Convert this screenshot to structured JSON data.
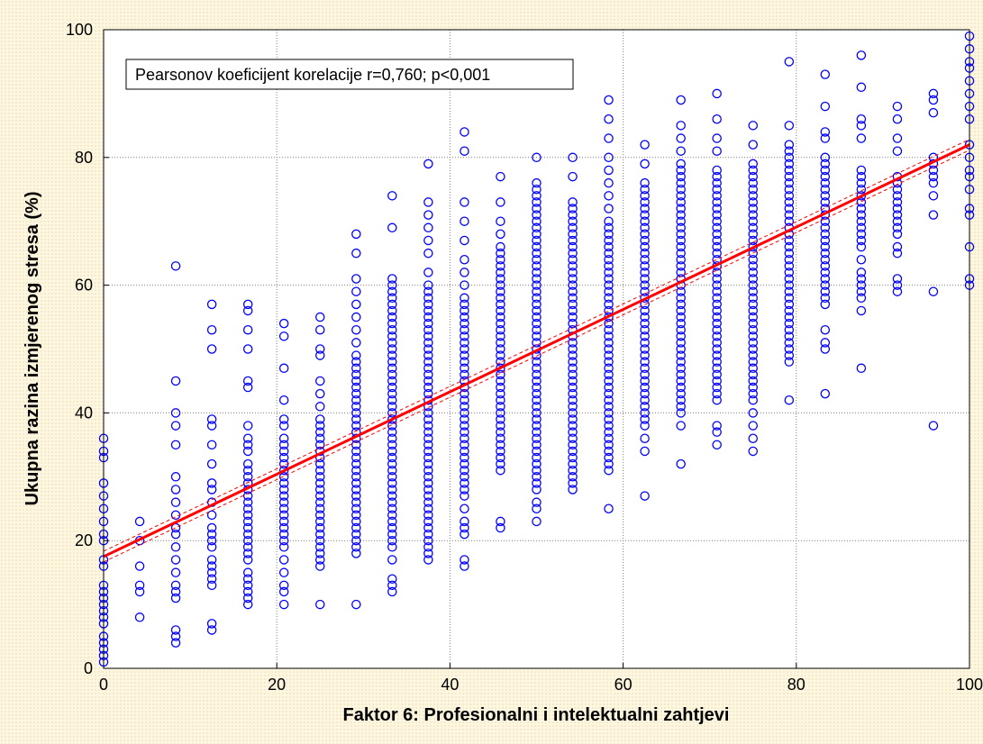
{
  "chart_data": {
    "type": "scatter",
    "xlabel": "Faktor 6: Profesionalni i intelektualni zahtjevi",
    "ylabel": "Ukupna razina izmjerenog stresa (%)",
    "annotation": "Pearsonov koeficijent korelacije r=0,760; p<0,001",
    "xlim": [
      0,
      100
    ],
    "ylim": [
      0,
      100
    ],
    "x_ticks": [
      0,
      20,
      40,
      60,
      80,
      100
    ],
    "y_ticks": [
      0,
      20,
      40,
      60,
      80,
      100
    ],
    "grid": true,
    "marker_color": "#0000ff",
    "fit_color": "#ff0000",
    "fit_line": {
      "intercept": 17.5,
      "slope": 0.645
    },
    "points": [
      {
        "x": 0,
        "y": [
          36,
          34,
          33,
          29,
          27,
          25,
          23,
          21,
          20,
          17,
          16,
          13,
          12,
          11,
          10,
          9,
          8,
          7,
          5,
          4,
          3,
          2,
          1
        ]
      },
      {
        "x": 4.17,
        "y": [
          23,
          20,
          16,
          13,
          12,
          8
        ]
      },
      {
        "x": 8.33,
        "y": [
          63,
          45,
          40,
          38,
          35,
          30,
          28,
          26,
          24,
          22,
          21,
          19,
          17,
          15,
          13,
          12,
          11,
          6,
          5,
          4
        ]
      },
      {
        "x": 12.5,
        "y": [
          57,
          53,
          50,
          39,
          38,
          35,
          32,
          29,
          28,
          26,
          24,
          22,
          21,
          20,
          19,
          17,
          16,
          15,
          14,
          13,
          7,
          6
        ]
      },
      {
        "x": 16.67,
        "y": [
          57,
          56,
          53,
          50,
          45,
          44,
          38,
          36,
          35,
          34,
          32,
          31,
          30,
          29,
          28,
          27,
          26,
          25,
          24,
          23,
          22,
          21,
          20,
          19,
          18,
          17,
          15,
          14,
          13,
          12,
          11,
          10
        ]
      },
      {
        "x": 20.83,
        "y": [
          54,
          52,
          47,
          42,
          39,
          38,
          36,
          35,
          34,
          33,
          32,
          31,
          30,
          29,
          28,
          27,
          26,
          25,
          24,
          23,
          22,
          21,
          20,
          19,
          17,
          15,
          13,
          12,
          10
        ]
      },
      {
        "x": 25,
        "y": [
          55,
          53,
          50,
          49,
          45,
          43,
          41,
          39,
          38,
          37,
          36,
          35,
          34,
          33,
          32,
          31,
          30,
          29,
          28,
          27,
          26,
          25,
          24,
          23,
          22,
          21,
          20,
          19,
          18,
          17,
          16,
          10
        ]
      },
      {
        "x": 29.17,
        "y": [
          68,
          65,
          61,
          59,
          57,
          55,
          53,
          51,
          49,
          48,
          47,
          46,
          45,
          44,
          43,
          42,
          41,
          40,
          39,
          38,
          37,
          36,
          35,
          34,
          33,
          32,
          31,
          30,
          29,
          28,
          27,
          26,
          25,
          24,
          23,
          22,
          21,
          20,
          19,
          18,
          10
        ]
      },
      {
        "x": 33.33,
        "y": [
          74,
          69,
          61,
          60,
          59,
          58,
          57,
          56,
          55,
          54,
          53,
          52,
          51,
          50,
          49,
          48,
          47,
          46,
          45,
          44,
          43,
          42,
          41,
          40,
          39,
          38,
          37,
          36,
          35,
          34,
          33,
          32,
          31,
          30,
          29,
          28,
          27,
          26,
          25,
          24,
          23,
          22,
          21,
          20,
          19,
          17,
          14,
          13,
          12
        ]
      },
      {
        "x": 37.5,
        "y": [
          79,
          73,
          71,
          69,
          67,
          65,
          62,
          60,
          59,
          58,
          57,
          56,
          55,
          54,
          53,
          52,
          51,
          50,
          49,
          48,
          47,
          46,
          45,
          44,
          43,
          42,
          41,
          40,
          39,
          38,
          37,
          36,
          35,
          34,
          33,
          32,
          31,
          30,
          29,
          28,
          27,
          26,
          25,
          24,
          23,
          22,
          21,
          20,
          19,
          18,
          17
        ]
      },
      {
        "x": 41.67,
        "y": [
          84,
          81,
          73,
          70,
          67,
          64,
          62,
          60,
          58,
          57,
          56,
          55,
          54,
          53,
          52,
          51,
          50,
          49,
          48,
          47,
          46,
          45,
          44,
          43,
          42,
          41,
          40,
          39,
          38,
          37,
          36,
          35,
          34,
          33,
          32,
          31,
          30,
          29,
          28,
          27,
          25,
          23,
          22,
          21,
          17,
          16
        ]
      },
      {
        "x": 45.83,
        "y": [
          77,
          73,
          70,
          68,
          66,
          65,
          64,
          63,
          62,
          61,
          60,
          59,
          58,
          57,
          56,
          55,
          54,
          53,
          52,
          51,
          50,
          49,
          48,
          47,
          46,
          45,
          44,
          43,
          42,
          41,
          40,
          39,
          38,
          37,
          36,
          35,
          34,
          33,
          32,
          31,
          23,
          22
        ]
      },
      {
        "x": 50,
        "y": [
          80,
          76,
          75,
          74,
          73,
          72,
          71,
          70,
          69,
          68,
          67,
          66,
          65,
          64,
          63,
          62,
          61,
          60,
          59,
          58,
          57,
          56,
          55,
          54,
          53,
          52,
          51,
          50,
          49,
          48,
          47,
          46,
          45,
          44,
          43,
          42,
          41,
          40,
          39,
          38,
          37,
          36,
          35,
          34,
          33,
          32,
          31,
          30,
          29,
          28,
          26,
          25,
          23
        ]
      },
      {
        "x": 54.17,
        "y": [
          80,
          77,
          73,
          72,
          71,
          70,
          69,
          68,
          67,
          66,
          65,
          64,
          63,
          62,
          61,
          60,
          59,
          58,
          57,
          56,
          55,
          54,
          53,
          52,
          51,
          50,
          49,
          48,
          47,
          46,
          45,
          44,
          43,
          42,
          41,
          40,
          39,
          38,
          37,
          36,
          35,
          34,
          33,
          32,
          31,
          30,
          29,
          28
        ]
      },
      {
        "x": 58.33,
        "y": [
          89,
          86,
          83,
          80,
          78,
          76,
          74,
          72,
          70,
          69,
          68,
          67,
          66,
          65,
          64,
          63,
          62,
          61,
          60,
          59,
          58,
          57,
          56,
          55,
          54,
          53,
          52,
          51,
          50,
          49,
          48,
          47,
          46,
          45,
          44,
          43,
          42,
          41,
          40,
          39,
          38,
          37,
          36,
          35,
          34,
          33,
          32,
          31,
          25
        ]
      },
      {
        "x": 62.5,
        "y": [
          82,
          79,
          76,
          75,
          74,
          73,
          72,
          71,
          70,
          69,
          68,
          67,
          66,
          65,
          64,
          63,
          62,
          61,
          60,
          59,
          58,
          57,
          56,
          55,
          54,
          53,
          52,
          51,
          50,
          49,
          48,
          47,
          46,
          45,
          44,
          43,
          42,
          41,
          40,
          39,
          38,
          36,
          34,
          27
        ]
      },
      {
        "x": 66.67,
        "y": [
          89,
          85,
          83,
          81,
          79,
          78,
          77,
          76,
          75,
          74,
          73,
          72,
          71,
          70,
          69,
          68,
          67,
          66,
          65,
          64,
          63,
          62,
          61,
          60,
          59,
          58,
          57,
          56,
          55,
          54,
          53,
          52,
          51,
          50,
          49,
          48,
          47,
          46,
          45,
          44,
          43,
          42,
          41,
          40,
          38,
          32
        ]
      },
      {
        "x": 70.83,
        "y": [
          90,
          86,
          83,
          81,
          78,
          77,
          76,
          75,
          74,
          73,
          72,
          71,
          70,
          69,
          68,
          67,
          66,
          65,
          64,
          63,
          62,
          61,
          60,
          59,
          58,
          57,
          56,
          55,
          54,
          53,
          52,
          51,
          50,
          49,
          48,
          47,
          46,
          45,
          44,
          43,
          42,
          38,
          37,
          35
        ]
      },
      {
        "x": 75,
        "y": [
          85,
          82,
          79,
          78,
          77,
          76,
          75,
          74,
          73,
          72,
          71,
          70,
          69,
          68,
          67,
          66,
          65,
          64,
          63,
          62,
          61,
          60,
          59,
          58,
          57,
          56,
          55,
          54,
          53,
          52,
          51,
          50,
          49,
          48,
          47,
          46,
          45,
          44,
          43,
          42,
          40,
          38,
          36,
          34
        ]
      },
      {
        "x": 79.17,
        "y": [
          95,
          85,
          82,
          81,
          80,
          79,
          78,
          77,
          76,
          75,
          74,
          73,
          72,
          71,
          70,
          69,
          68,
          67,
          66,
          65,
          64,
          63,
          62,
          61,
          60,
          59,
          58,
          57,
          56,
          55,
          54,
          53,
          52,
          51,
          50,
          49,
          48,
          42
        ]
      },
      {
        "x": 83.33,
        "y": [
          93,
          88,
          84,
          83,
          80,
          79,
          78,
          77,
          76,
          75,
          74,
          73,
          72,
          71,
          70,
          69,
          68,
          67,
          66,
          65,
          64,
          63,
          62,
          61,
          60,
          59,
          58,
          57,
          53,
          51,
          50,
          43
        ]
      },
      {
        "x": 87.5,
        "y": [
          96,
          91,
          86,
          85,
          83,
          78,
          77,
          76,
          75,
          74,
          73,
          72,
          71,
          70,
          69,
          68,
          67,
          66,
          64,
          62,
          61,
          60,
          59,
          58,
          56,
          47
        ]
      },
      {
        "x": 91.67,
        "y": [
          88,
          86,
          83,
          81,
          77,
          76,
          75,
          74,
          73,
          72,
          71,
          70,
          69,
          68,
          66,
          65,
          61,
          60,
          59
        ]
      },
      {
        "x": 95.83,
        "y": [
          90,
          89,
          87,
          80,
          79,
          78,
          77,
          76,
          74,
          71,
          59,
          38
        ]
      },
      {
        "x": 100,
        "y": [
          99,
          97,
          95,
          94,
          92,
          90,
          88,
          86,
          82,
          80,
          78,
          77,
          75,
          72,
          71,
          66,
          61,
          60
        ]
      }
    ]
  }
}
